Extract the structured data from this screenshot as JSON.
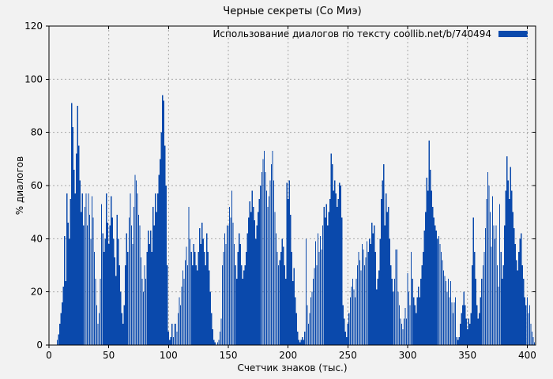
{
  "title": "Черные секреты (Со Миэ)",
  "legend": {
    "label": "Использование диалогов по тексту coollib.net/b/740494"
  },
  "colors": {
    "bar": "#0a49ac",
    "background": "#f2f2f2",
    "grid": "#a8a8a8",
    "axis": "#000000"
  },
  "chart_data": {
    "type": "bar",
    "title": "Черные секреты (Со Миэ)",
    "xlabel": "Счетчик знаков (тыс.)",
    "ylabel": "% диалогов",
    "legend_label": "Использование диалогов по тексту coollib.net/b/740494",
    "legend_position": "top-right",
    "grid": true,
    "bar_color": "#0a49ac",
    "xlim": [
      0,
      407
    ],
    "ylim": [
      0,
      120
    ],
    "x_ticks": [
      0,
      50,
      100,
      150,
      200,
      250,
      300,
      350,
      400
    ],
    "y_ticks": [
      0,
      20,
      40,
      60,
      80,
      100,
      120
    ],
    "x_start": 0,
    "x_step": 1,
    "values": [
      0,
      0,
      0,
      0,
      0,
      0,
      0,
      2,
      4,
      8,
      12,
      16,
      22,
      41,
      24,
      57,
      46,
      40,
      55,
      91,
      82,
      66,
      57,
      72,
      90,
      75,
      62,
      50,
      57,
      45,
      52,
      57,
      45,
      57,
      49,
      40,
      56,
      48,
      35,
      25,
      15,
      8,
      12,
      25,
      53,
      42,
      35,
      40,
      57,
      46,
      38,
      45,
      56,
      48,
      40,
      33,
      26,
      49,
      40,
      30,
      20,
      12,
      8,
      15,
      30,
      42,
      35,
      48,
      57,
      45,
      38,
      52,
      64,
      62,
      57,
      49,
      45,
      33,
      25,
      20,
      30,
      25,
      35,
      43,
      38,
      43,
      35,
      52,
      45,
      57,
      50,
      57,
      64,
      70,
      80,
      94,
      92,
      75,
      60,
      30,
      5,
      2,
      3,
      8,
      3,
      8,
      8,
      5,
      12,
      18,
      15,
      22,
      28,
      25,
      32,
      37,
      30,
      52,
      40,
      35,
      30,
      38,
      35,
      30,
      28,
      35,
      44,
      38,
      46,
      40,
      35,
      30,
      42,
      35,
      28,
      20,
      12,
      6,
      2,
      1,
      0,
      1,
      2,
      5,
      10,
      30,
      35,
      42,
      38,
      45,
      45,
      52,
      48,
      58,
      46,
      38,
      30,
      25,
      35,
      42,
      38,
      30,
      25,
      28,
      30,
      35,
      42,
      48,
      54,
      50,
      58,
      52,
      47,
      40,
      45,
      50,
      55,
      60,
      65,
      70,
      73,
      65,
      58,
      52,
      56,
      62,
      68,
      73,
      62,
      50,
      42,
      35,
      30,
      32,
      35,
      40,
      37,
      30,
      25,
      61,
      55,
      62,
      49,
      35,
      24,
      29,
      18,
      12,
      5,
      2,
      1,
      2,
      3,
      2,
      5,
      40,
      15,
      8,
      12,
      18,
      20,
      25,
      29,
      39,
      30,
      42,
      35,
      41,
      36,
      45,
      52,
      48,
      53,
      45,
      50,
      55,
      72,
      68,
      58,
      62,
      57,
      52,
      55,
      61,
      60,
      48,
      15,
      10,
      5,
      3,
      8,
      12,
      18,
      22,
      25,
      21,
      18,
      25,
      30,
      35,
      32,
      28,
      38,
      36,
      30,
      33,
      39,
      35,
      40,
      38,
      46,
      42,
      45,
      35,
      21,
      25,
      28,
      40,
      55,
      62,
      68,
      45,
      57,
      50,
      52,
      40,
      30,
      25,
      20,
      25,
      36,
      36,
      20,
      15,
      10,
      8,
      6,
      10,
      14,
      10,
      27,
      20,
      15,
      35,
      25,
      18,
      15,
      12,
      18,
      22,
      18,
      25,
      30,
      35,
      43,
      50,
      63,
      58,
      77,
      66,
      58,
      52,
      48,
      45,
      43,
      40,
      41,
      38,
      35,
      32,
      28,
      26,
      24,
      20,
      25,
      18,
      24,
      16,
      12,
      16,
      18,
      3,
      2,
      3,
      8,
      12,
      15,
      20,
      15,
      10,
      6,
      10,
      8,
      12,
      30,
      48,
      35,
      25,
      15,
      10,
      12,
      18,
      25,
      30,
      35,
      44,
      55,
      65,
      60,
      50,
      37,
      56,
      45,
      40,
      45,
      30,
      22,
      53,
      35,
      25,
      30,
      45,
      58,
      71,
      62,
      55,
      67,
      58,
      50,
      44,
      38,
      32,
      28,
      35,
      40,
      42,
      30,
      25,
      18,
      15,
      18,
      12,
      15,
      8,
      5,
      3,
      1
    ]
  }
}
